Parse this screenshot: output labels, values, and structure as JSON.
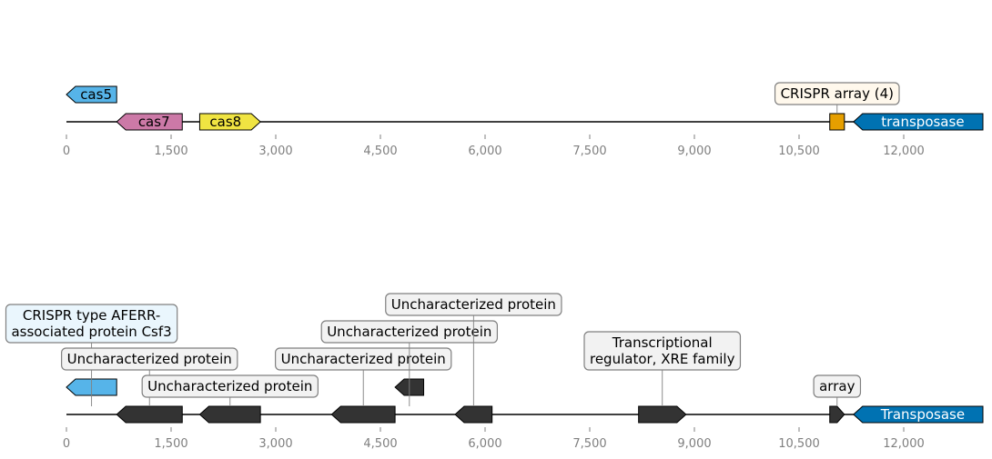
{
  "colors": {
    "axis": "#000000",
    "tick_text": "#7f7f7f",
    "callout_border": "#808080"
  },
  "tracks": [
    {
      "axis_ticks": [
        "0",
        "1,500",
        "3,000",
        "4,500",
        "6,000",
        "7,500",
        "9,000",
        "10,500",
        "12,000"
      ],
      "axis_tick_values": [
        0,
        1500,
        3000,
        4500,
        6000,
        7500,
        9000,
        10500,
        12000
      ],
      "features": [
        {
          "label": "cas5",
          "start": 0,
          "end": 720,
          "strand": -1,
          "row": 1,
          "color": "#56b4e9",
          "text_color": "#000000"
        },
        {
          "label": "cas7",
          "start": 720,
          "end": 1660,
          "strand": -1,
          "row": 0,
          "color": "#cc79a7",
          "text_color": "#000000"
        },
        {
          "label": "cas8",
          "start": 1910,
          "end": 2780,
          "strand": 1,
          "row": 0,
          "color": "#f0e442",
          "text_color": "#000000"
        },
        {
          "label": "transposase",
          "start": 11280,
          "end": 13150,
          "strand": -1,
          "row": 0,
          "color": "#0072b2",
          "text_color": "#ffffff"
        },
        {
          "label": "",
          "start": 10940,
          "end": 11150,
          "strand": 0,
          "row": 0,
          "color": "#e69f00",
          "text_color": "#000000"
        }
      ],
      "callouts": [
        {
          "lines": [
            "CRISPR array (4)"
          ],
          "at": 11045,
          "level": 1,
          "fill": "#fff8ec"
        }
      ]
    },
    {
      "axis_ticks": [
        "0",
        "1,500",
        "3,000",
        "4,500",
        "6,000",
        "7,500",
        "9,000",
        "10,500",
        "12,000"
      ],
      "axis_tick_values": [
        0,
        1500,
        3000,
        4500,
        6000,
        7500,
        9000,
        10500,
        12000
      ],
      "features": [
        {
          "label": "",
          "start": 0,
          "end": 720,
          "strand": -1,
          "row": 1,
          "color": "#56b4e9",
          "text_color": "#000000"
        },
        {
          "label": "",
          "start": 720,
          "end": 1660,
          "strand": -1,
          "row": 0,
          "color": "#333333",
          "text_color": "#ffffff"
        },
        {
          "label": "",
          "start": 1910,
          "end": 2780,
          "strand": -1,
          "row": 0,
          "color": "#333333",
          "text_color": "#ffffff"
        },
        {
          "label": "",
          "start": 3800,
          "end": 4710,
          "strand": -1,
          "row": 0,
          "color": "#333333",
          "text_color": "#ffffff"
        },
        {
          "label": "",
          "start": 4710,
          "end": 5120,
          "strand": -1,
          "row": 1,
          "color": "#333333",
          "text_color": "#ffffff"
        },
        {
          "label": "",
          "start": 5570,
          "end": 6100,
          "strand": -1,
          "row": 0,
          "color": "#333333",
          "text_color": "#ffffff"
        },
        {
          "label": "",
          "start": 8200,
          "end": 8880,
          "strand": 1,
          "row": 0,
          "color": "#333333",
          "text_color": "#ffffff"
        },
        {
          "label": "",
          "start": 10940,
          "end": 11150,
          "strand": 1,
          "row": 0,
          "color": "#333333",
          "text_color": "#ffffff"
        },
        {
          "label": "Transposase",
          "start": 11280,
          "end": 13150,
          "strand": -1,
          "row": 0,
          "color": "#0072b2",
          "text_color": "#ffffff"
        }
      ],
      "callouts": [
        {
          "lines": [
            "CRISPR type AFERR-",
            "associated protein Csf3"
          ],
          "at": 360,
          "level": 3,
          "fill": "#eaf6fd"
        },
        {
          "lines": [
            "Uncharacterized protein"
          ],
          "at": 1190,
          "level": 2,
          "fill": "#f2f2f2"
        },
        {
          "lines": [
            "Uncharacterized protein"
          ],
          "at": 2345,
          "level": 1,
          "fill": "#f2f2f2"
        },
        {
          "lines": [
            "Uncharacterized protein"
          ],
          "at": 4255,
          "level": 2,
          "fill": "#f2f2f2"
        },
        {
          "lines": [
            "Uncharacterized protein"
          ],
          "at": 4915,
          "level": 3,
          "fill": "#f2f2f2"
        },
        {
          "lines": [
            "Uncharacterized protein"
          ],
          "at": 5835,
          "level": 4,
          "fill": "#f2f2f2"
        },
        {
          "lines": [
            "Transcriptional",
            "regulator, XRE family"
          ],
          "at": 8540,
          "level": 2,
          "fill": "#f2f2f2"
        },
        {
          "lines": [
            "array"
          ],
          "at": 11045,
          "level": 1,
          "fill": "#f2f2f2"
        }
      ]
    }
  ]
}
